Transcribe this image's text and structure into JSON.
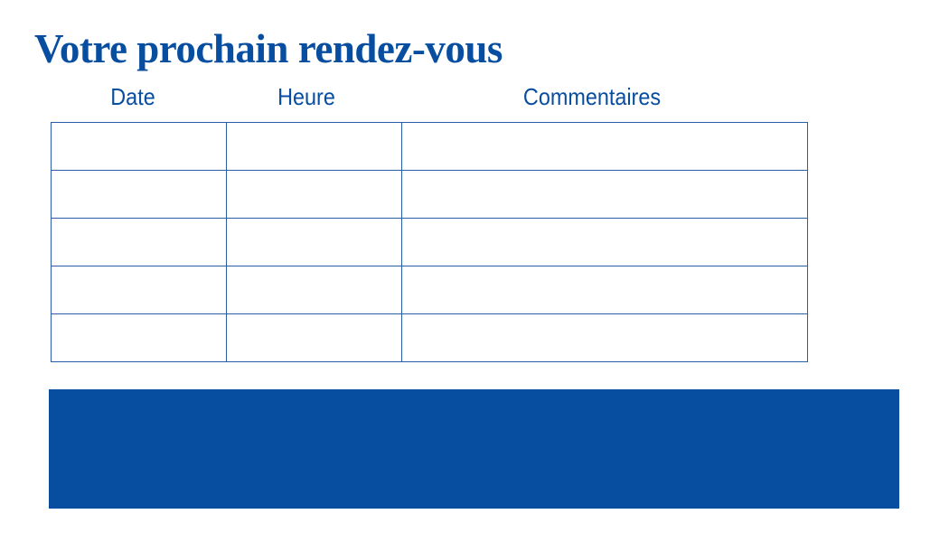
{
  "title": "Votre prochain rendez-vous",
  "columns": [
    "Date",
    "Heure",
    "Commentaires"
  ],
  "rows": [
    [
      "",
      "",
      ""
    ],
    [
      "",
      "",
      ""
    ],
    [
      "",
      "",
      ""
    ],
    [
      "",
      "",
      ""
    ],
    [
      "",
      "",
      ""
    ]
  ],
  "colors": {
    "brand_blue": "#084ea0"
  }
}
